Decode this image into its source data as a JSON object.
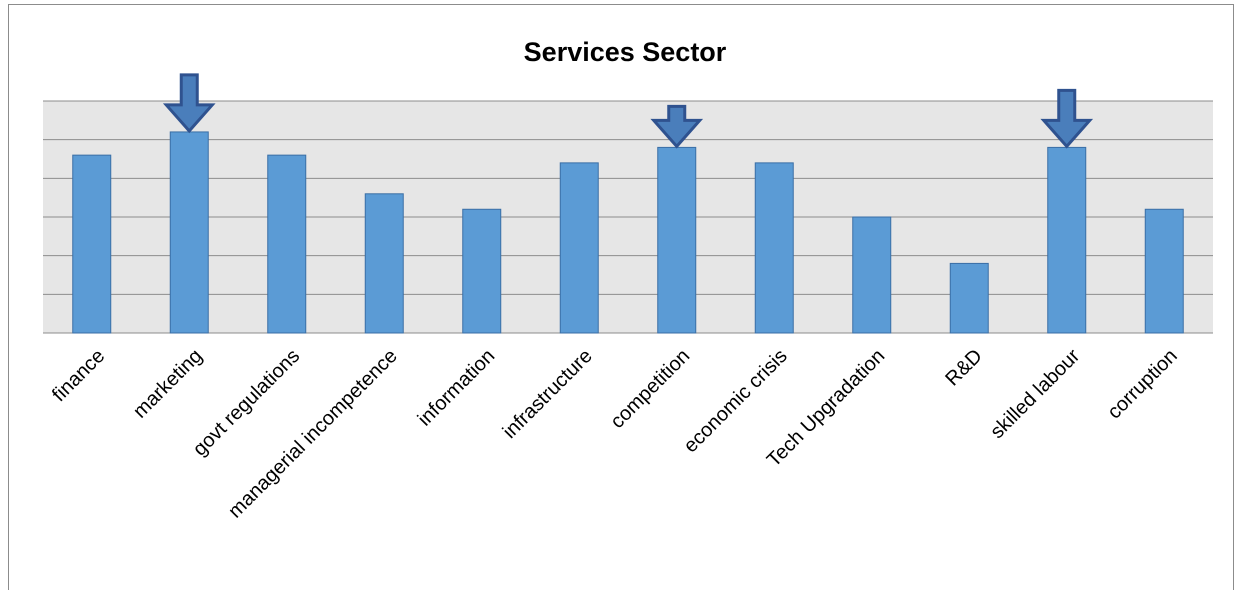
{
  "chart_data": {
    "type": "bar",
    "title": "Services Sector",
    "xlabel": "",
    "ylabel": "",
    "categories": [
      "finance",
      "marketing",
      "govt regulations",
      "managerial incompetence",
      "information",
      "infrastructure",
      "competition",
      "economic crisis",
      "Tech Upgradation",
      "R&D",
      "skilled labour",
      "corruption"
    ],
    "values": [
      4.6,
      5.2,
      4.6,
      3.6,
      3.2,
      4.4,
      4.8,
      4.4,
      3.0,
      1.8,
      4.8,
      3.2
    ],
    "ylim": [
      0,
      6
    ],
    "grid": true,
    "legend": "none",
    "highlighted": [
      "marketing",
      "competition",
      "skilled labour"
    ],
    "colors": {
      "bar": "#5b9bd5",
      "bar_edge": "#3a6ea5",
      "plot_bg": "#e6e6e6",
      "grid": "#8c8c8c",
      "arrow": "#4a7ebb",
      "arrow_edge": "#2f528f"
    }
  }
}
